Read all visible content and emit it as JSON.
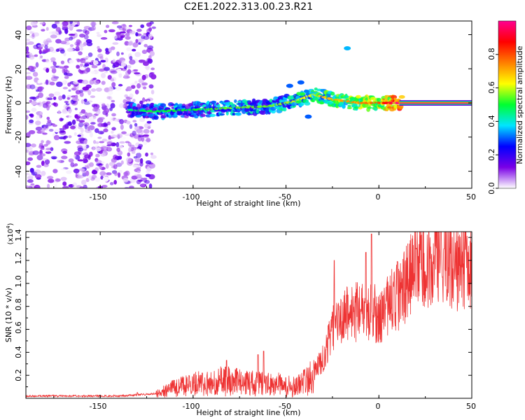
{
  "title": "C2E1.2022.313.00.23.R21",
  "chart_data": [
    {
      "type": "heatmap",
      "title": "C2E1.2022.313.00.23.R21",
      "xlabel": "Height of straight line (km)",
      "ylabel": "Frequency (Hz)",
      "xlim": [
        -190,
        50
      ],
      "ylim": [
        -50,
        48
      ],
      "x_ticks": [
        "-150",
        "-100",
        "-50",
        "0",
        "50"
      ],
      "y_ticks": [
        "-40",
        "-20",
        "0",
        "20",
        "40"
      ],
      "colorbar": {
        "label": "Normalized spectral amplitude",
        "range": [
          0,
          1
        ],
        "ticks": [
          "0.0",
          "0.2",
          "0.4",
          "0.6",
          "0.8"
        ],
        "colormap": [
          "#ffffff",
          "#7a00e6",
          "#0000ff",
          "#00e5ff",
          "#00ff30",
          "#ffff00",
          "#ff7f00",
          "#ff0000",
          "#ff0090"
        ]
      },
      "noise_region_x": [
        -190,
        -121
      ],
      "ridge": [
        {
          "x": -135,
          "y": -4,
          "amp": 0.35
        },
        {
          "x": -120,
          "y": -5,
          "amp": 0.4
        },
        {
          "x": -100,
          "y": -4,
          "amp": 0.4
        },
        {
          "x": -80,
          "y": -3,
          "amp": 0.45
        },
        {
          "x": -60,
          "y": -2,
          "amp": 0.45
        },
        {
          "x": -45,
          "y": 1,
          "amp": 0.5
        },
        {
          "x": -35,
          "y": 5,
          "amp": 0.55
        },
        {
          "x": -25,
          "y": 2,
          "amp": 0.6
        },
        {
          "x": -10,
          "y": 0,
          "amp": 0.65
        },
        {
          "x": 0,
          "y": 0,
          "amp": 0.7
        },
        {
          "x": 10,
          "y": 0,
          "amp": 0.9
        },
        {
          "x": 50,
          "y": 0,
          "amp": 1.0
        }
      ],
      "extra_blobs": [
        {
          "x": -17,
          "y": 32,
          "amp": 0.35
        },
        {
          "x": -38,
          "y": -8,
          "amp": 0.3
        },
        {
          "x": -48,
          "y": 10,
          "amp": 0.3
        },
        {
          "x": -42,
          "y": 12,
          "amp": 0.3
        }
      ]
    },
    {
      "type": "line",
      "xlabel": "Height of straight line (km)",
      "ylabel": "SNR (10 * v/v)",
      "y_multiplier": "(x10",
      "y_multiplier_exp": "4",
      "xlim": [
        -190,
        50
      ],
      "ylim": [
        0.0,
        1.45
      ],
      "x_ticks": [
        "-150",
        "-100",
        "-50",
        "0",
        "50"
      ],
      "y_ticks": [
        "0.2",
        "0.4",
        "0.6",
        "0.8",
        "1.0",
        "1.2",
        "1.4"
      ],
      "series": [
        {
          "color": "#ee3333",
          "trend": [
            [
              -190,
              0.02
            ],
            [
              -140,
              0.02
            ],
            [
              -130,
              0.03
            ],
            [
              -120,
              0.04
            ],
            [
              -112,
              0.08
            ],
            [
              -100,
              0.12
            ],
            [
              -85,
              0.15
            ],
            [
              -70,
              0.13
            ],
            [
              -55,
              0.12
            ],
            [
              -45,
              0.1
            ],
            [
              -38,
              0.15
            ],
            [
              -30,
              0.35
            ],
            [
              -25,
              0.6
            ],
            [
              -20,
              0.7
            ],
            [
              -15,
              0.75
            ],
            [
              -10,
              0.75
            ],
            [
              -5,
              0.78
            ],
            [
              0,
              0.72
            ],
            [
              5,
              0.82
            ],
            [
              10,
              0.88
            ],
            [
              15,
              1.0
            ],
            [
              20,
              1.15
            ],
            [
              25,
              1.2
            ],
            [
              30,
              1.22
            ],
            [
              35,
              1.2
            ],
            [
              40,
              1.15
            ],
            [
              45,
              1.1
            ],
            [
              50,
              1.12
            ]
          ],
          "peaks": [
            [
              -130,
              0.05
            ],
            [
              -113,
              0.12
            ],
            [
              -95,
              0.22
            ],
            [
              -82,
              0.33
            ],
            [
              -65,
              0.38
            ],
            [
              -62,
              0.41
            ],
            [
              -40,
              0.25
            ],
            [
              -24,
              1.2
            ],
            [
              -7,
              1.27
            ],
            [
              -4,
              1.43
            ],
            [
              10,
              1.19
            ],
            [
              20,
              1.3
            ],
            [
              35,
              1.3
            ]
          ]
        }
      ]
    }
  ]
}
